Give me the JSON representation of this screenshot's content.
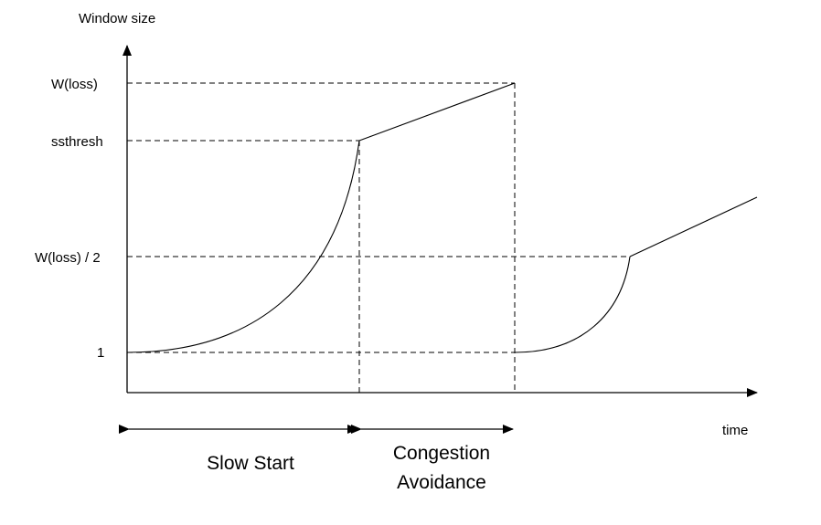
{
  "y_axis_label": "Window size",
  "x_axis_label": "time",
  "y_levels": {
    "w_loss": "W(loss)",
    "ssthresh": "ssthresh",
    "w_loss_half": "W(loss) / 2",
    "one": "1"
  },
  "phases": {
    "slow_start": "Slow Start",
    "congestion_avoidance_line1": "Congestion",
    "congestion_avoidance_line2": "Avoidance"
  }
}
